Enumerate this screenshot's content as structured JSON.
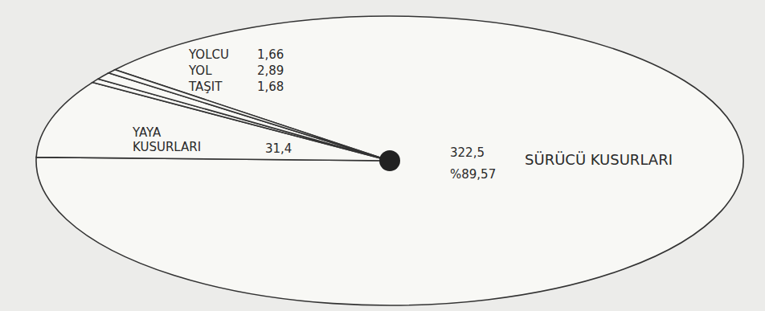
{
  "chart_data": {
    "type": "pie",
    "categories": [
      "SÜRÜCÜ KUSURLARI",
      "YAYA KUSURLARI",
      "TAŞIT",
      "YOL",
      "YOLCU"
    ],
    "values": [
      322.5,
      31.4,
      1.68,
      2.89,
      1.66
    ],
    "value_labels": [
      "322,5",
      "31,4",
      "1,68",
      "2,89",
      "1,66"
    ],
    "annotations": [
      "%89,57"
    ],
    "data_labels": true
  }
}
